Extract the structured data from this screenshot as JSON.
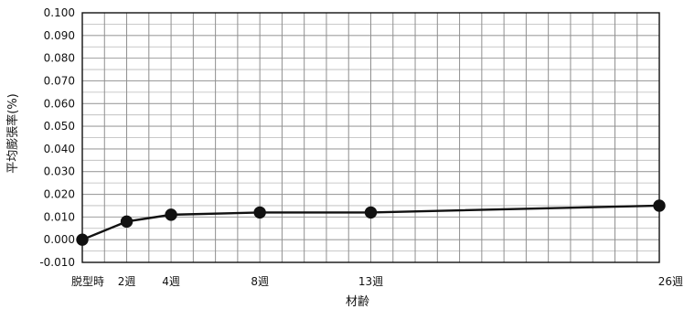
{
  "chart_data": {
    "type": "line",
    "title": "",
    "xlabel": "材齢",
    "ylabel": "平均膨張率(%)",
    "x": [
      0,
      2,
      4,
      8,
      13,
      26
    ],
    "x_tick_labels": [
      "脱型時",
      "2週",
      "4週",
      "8週",
      "13週",
      "26週"
    ],
    "xlim": [
      0,
      26
    ],
    "y_ticks": [
      "-0.010",
      "0.000",
      "0.010",
      "0.020",
      "0.030",
      "0.040",
      "0.050",
      "0.060",
      "0.070",
      "0.080",
      "0.090",
      "0.100"
    ],
    "ylim": [
      -0.01,
      0.1
    ],
    "grid": true,
    "legend": "none",
    "series": [
      {
        "values": [
          0.0,
          0.008,
          0.011,
          0.012,
          0.012,
          0.015
        ],
        "color": "#111111",
        "marker": "circle"
      }
    ]
  }
}
